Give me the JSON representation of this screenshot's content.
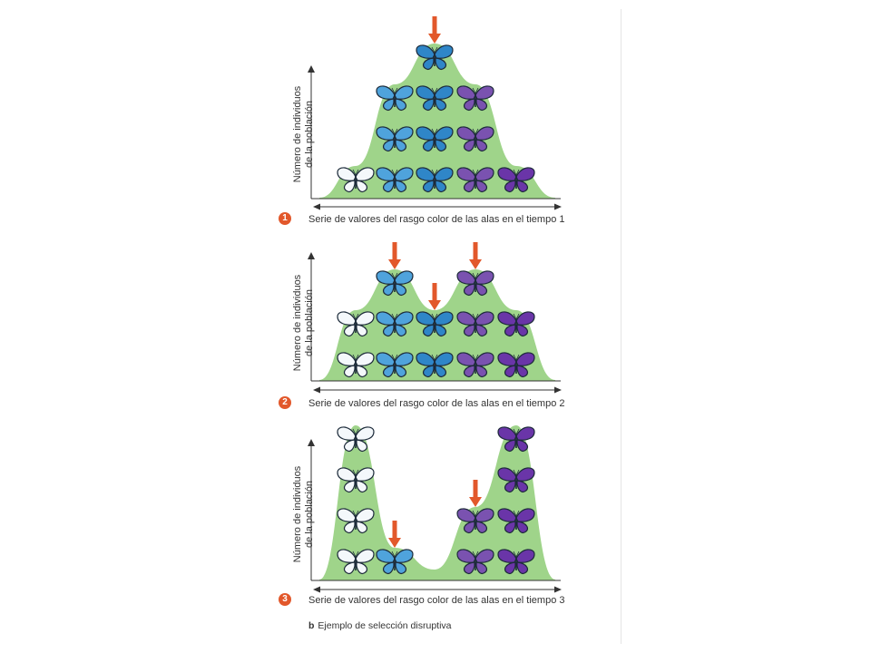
{
  "colors": {
    "fill": "#9fd48a",
    "arrow": "#e2582b",
    "axis": "#333333",
    "wing": [
      "#f4f8fb",
      "#4fa3dc",
      "#2f86c8",
      "#7a52b0",
      "#6a35a8"
    ]
  },
  "y_axis_label": [
    "Número de individuos",
    "de la población"
  ],
  "panels": [
    {
      "badge": "1",
      "x_axis_label": "Serie de valores del rasgo color de las alas en el tiempo 1",
      "chart_data": {
        "type": "bar",
        "categories": [
          "white",
          "light blue",
          "blue",
          "violet",
          "purple"
        ],
        "values": [
          1,
          3,
          4,
          3,
          1
        ],
        "arrows_over": [
          "blue"
        ]
      }
    },
    {
      "badge": "2",
      "x_axis_label": "Serie de valores del rasgo color de las alas en el tiempo 2",
      "chart_data": {
        "type": "bar",
        "categories": [
          "white",
          "light blue",
          "blue",
          "violet",
          "purple"
        ],
        "values": [
          2,
          3,
          2,
          3,
          2
        ],
        "arrows_over": [
          "light blue",
          "blue",
          "violet"
        ]
      }
    },
    {
      "badge": "3",
      "x_axis_label": "Serie de valores del rasgo color de las alas en el tiempo 3",
      "chart_data": {
        "type": "bar",
        "categories": [
          "white",
          "light blue",
          "blue",
          "violet",
          "purple"
        ],
        "values": [
          4,
          1,
          0,
          2,
          4
        ],
        "arrows_over": [
          "light blue",
          "violet"
        ]
      }
    }
  ],
  "caption": {
    "letter": "b",
    "text": "Ejemplo de selección disruptiva"
  }
}
